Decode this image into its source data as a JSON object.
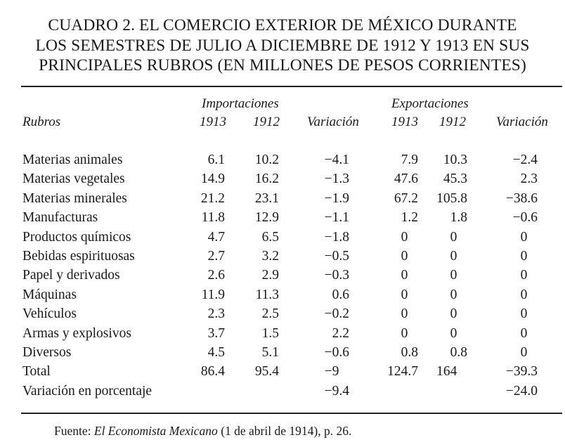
{
  "title": [
    "CUADRO 2. EL COMERCIO EXTERIOR DE MÉXICO DURANTE",
    "LOS SEMESTRES DE JULIO A DICIEMBRE DE 1912 Y 1913 EN SUS",
    "PRINCIPALES RUBROS (EN MILLONES DE PESOS CORRIENTES)"
  ],
  "headers": {
    "group_imp": "Importaciones",
    "group_exp": "Exportaciones",
    "rubros": "Rubros",
    "imp_1913": "1913",
    "imp_1912": "1912",
    "imp_var": "Variación",
    "exp_1913": "1913",
    "exp_1912": "1912",
    "exp_var": "Variación"
  },
  "rows": [
    [
      "Materias animales",
      "6.1",
      "10.2",
      "−4.1",
      "7.9",
      "10.3",
      "−2.4"
    ],
    [
      "Materias vegetales",
      "14.9",
      "16.2",
      "−1.3",
      "47.6",
      "45.3",
      "2.3"
    ],
    [
      "Materias minerales",
      "21.2",
      "23.1",
      "−1.9",
      "67.2",
      "105.8",
      "−38.6"
    ],
    [
      "Manufacturas",
      "11.8",
      "12.9",
      "−1.1",
      "1.2",
      "1.8",
      "−0.6"
    ],
    [
      "Productos químicos",
      "4.7",
      "6.5",
      "−1.8",
      "0",
      "0",
      "0"
    ],
    [
      "Bebidas espirituosas",
      "2.7",
      "3.2",
      "−0.5",
      "0",
      "0",
      "0"
    ],
    [
      "Papel y derivados",
      "2.6",
      "2.9",
      "−0.3",
      "0",
      "0",
      "0"
    ],
    [
      "Máquinas",
      "11.9",
      "11.3",
      "0.6",
      "0",
      "0",
      "0"
    ],
    [
      "Vehículos",
      "2.3",
      "2.5",
      "−0.2",
      "0",
      "0",
      "0"
    ],
    [
      "Armas y explosivos",
      "3.7",
      "1.5",
      "2.2",
      "0",
      "0",
      "0"
    ],
    [
      "Diversos",
      "4.5",
      "5.1",
      "−0.6",
      "0.8",
      "0.8",
      "0"
    ],
    [
      "Total",
      "86.4",
      "95.4",
      "−9",
      "124.7",
      "164",
      "−39.3"
    ],
    [
      "Variación en porcentaje",
      "",
      "",
      "−9.4",
      "",
      "",
      "−24.0"
    ]
  ],
  "source": {
    "prefix": "Fuente: ",
    "work": "El Economista Mexicano",
    "suffix": " (1 de abril de 1914), p. 26."
  }
}
